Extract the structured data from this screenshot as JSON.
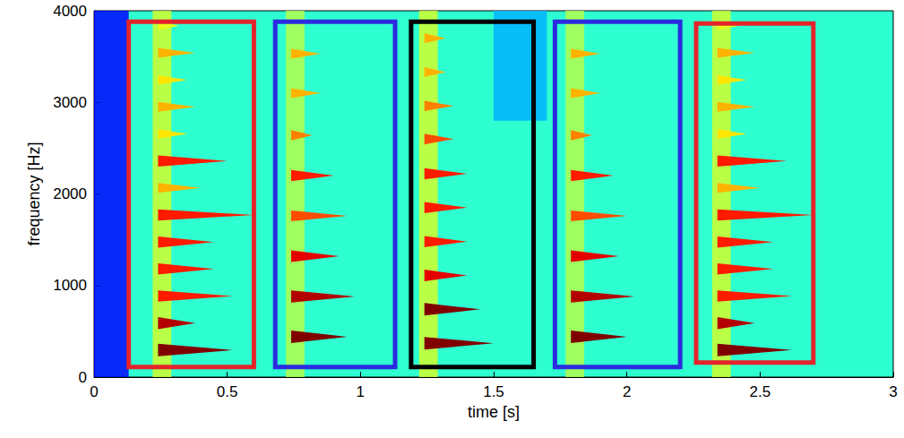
{
  "chart_data": {
    "type": "spectrogram",
    "x_label": "time [s]",
    "y_label": "frequency [Hz]",
    "xlim": [
      0,
      3
    ],
    "xticks": [
      0,
      0.5,
      1,
      1.5,
      2,
      2.5,
      3
    ],
    "ylim": [
      0,
      4000
    ],
    "yticks": [
      0,
      1000,
      2000,
      3000,
      4000
    ],
    "clim": [
      0,
      1
    ],
    "background": 0.42,
    "regions": [
      {
        "t": [
          0,
          0.13
        ],
        "f": [
          0,
          4000
        ],
        "intensity": 0.13
      },
      {
        "t": [
          0.22,
          0.29
        ],
        "f": [
          0,
          4000
        ],
        "intensity": 0.58
      },
      {
        "t": [
          0.72,
          0.79
        ],
        "f": [
          0,
          4000
        ],
        "intensity": 0.55
      },
      {
        "t": [
          1.22,
          1.29
        ],
        "f": [
          0,
          4000
        ],
        "intensity": 0.58
      },
      {
        "t": [
          1.77,
          1.84
        ],
        "f": [
          0,
          4000
        ],
        "intensity": 0.55
      },
      {
        "t": [
          2.32,
          2.39
        ],
        "f": [
          0,
          4000
        ],
        "intensity": 0.58
      },
      {
        "t": [
          1.5,
          1.7
        ],
        "f": [
          2800,
          4000
        ],
        "intensity": 0.3
      }
    ],
    "notes": [
      {
        "onset": 0.24,
        "partials": [
          {
            "f": 295,
            "end": 0.52,
            "intensity": 1
          },
          {
            "f": 590,
            "end": 0.38,
            "intensity": 0.95
          },
          {
            "f": 885,
            "end": 0.52,
            "intensity": 0.85
          },
          {
            "f": 1180,
            "end": 0.45,
            "intensity": 0.85
          },
          {
            "f": 1475,
            "end": 0.45,
            "intensity": 0.85
          },
          {
            "f": 1770,
            "end": 0.6,
            "intensity": 0.85
          },
          {
            "f": 2065,
            "end": 0.4,
            "intensity": 0.7
          },
          {
            "f": 2360,
            "end": 0.5,
            "intensity": 0.85
          },
          {
            "f": 2655,
            "end": 0.35,
            "intensity": 0.65
          },
          {
            "f": 2950,
            "end": 0.38,
            "intensity": 0.7
          },
          {
            "f": 3245,
            "end": 0.35,
            "intensity": 0.65
          },
          {
            "f": 3540,
            "end": 0.38,
            "intensity": 0.7
          },
          {
            "f": 3835,
            "end": 0.32,
            "intensity": 0.6
          }
        ]
      },
      {
        "onset": 0.74,
        "partials": [
          {
            "f": 440,
            "end": 0.95,
            "intensity": 1
          },
          {
            "f": 880,
            "end": 0.98,
            "intensity": 0.95
          },
          {
            "f": 1320,
            "end": 0.92,
            "intensity": 0.9
          },
          {
            "f": 1760,
            "end": 0.95,
            "intensity": 0.8
          },
          {
            "f": 2200,
            "end": 0.9,
            "intensity": 0.85
          },
          {
            "f": 2640,
            "end": 0.82,
            "intensity": 0.75
          },
          {
            "f": 3100,
            "end": 0.85,
            "intensity": 0.7
          },
          {
            "f": 3530,
            "end": 0.85,
            "intensity": 0.7
          }
        ]
      },
      {
        "onset": 1.24,
        "partials": [
          {
            "f": 370,
            "end": 1.5,
            "intensity": 1
          },
          {
            "f": 740,
            "end": 1.45,
            "intensity": 1
          },
          {
            "f": 1110,
            "end": 1.4,
            "intensity": 0.9
          },
          {
            "f": 1480,
            "end": 1.4,
            "intensity": 0.85
          },
          {
            "f": 1850,
            "end": 1.4,
            "intensity": 0.85
          },
          {
            "f": 2220,
            "end": 1.4,
            "intensity": 0.85
          },
          {
            "f": 2600,
            "end": 1.35,
            "intensity": 0.8
          },
          {
            "f": 2960,
            "end": 1.35,
            "intensity": 0.75
          },
          {
            "f": 3330,
            "end": 1.32,
            "intensity": 0.7
          },
          {
            "f": 3700,
            "end": 1.32,
            "intensity": 0.7
          }
        ]
      },
      {
        "onset": 1.79,
        "partials": [
          {
            "f": 440,
            "end": 2.0,
            "intensity": 1
          },
          {
            "f": 880,
            "end": 2.03,
            "intensity": 0.95
          },
          {
            "f": 1320,
            "end": 1.97,
            "intensity": 0.9
          },
          {
            "f": 1760,
            "end": 2.0,
            "intensity": 0.8
          },
          {
            "f": 2200,
            "end": 1.95,
            "intensity": 0.85
          },
          {
            "f": 2640,
            "end": 1.87,
            "intensity": 0.75
          },
          {
            "f": 3100,
            "end": 1.9,
            "intensity": 0.7
          },
          {
            "f": 3530,
            "end": 1.9,
            "intensity": 0.7
          }
        ]
      },
      {
        "onset": 2.34,
        "partials": [
          {
            "f": 295,
            "end": 2.62,
            "intensity": 1
          },
          {
            "f": 590,
            "end": 2.48,
            "intensity": 0.95
          },
          {
            "f": 885,
            "end": 2.62,
            "intensity": 0.85
          },
          {
            "f": 1180,
            "end": 2.55,
            "intensity": 0.85
          },
          {
            "f": 1475,
            "end": 2.55,
            "intensity": 0.85
          },
          {
            "f": 1770,
            "end": 2.7,
            "intensity": 0.85
          },
          {
            "f": 2065,
            "end": 2.5,
            "intensity": 0.7
          },
          {
            "f": 2360,
            "end": 2.6,
            "intensity": 0.85
          },
          {
            "f": 2655,
            "end": 2.45,
            "intensity": 0.65
          },
          {
            "f": 2950,
            "end": 2.48,
            "intensity": 0.7
          },
          {
            "f": 3245,
            "end": 2.45,
            "intensity": 0.65
          },
          {
            "f": 3540,
            "end": 2.48,
            "intensity": 0.7
          },
          {
            "f": 3835,
            "end": 2.42,
            "intensity": 0.6
          }
        ]
      }
    ],
    "boxes": [
      {
        "t": [
          0.13,
          0.6
        ],
        "f": [
          110,
          3880
        ],
        "color": "#e3242b"
      },
      {
        "t": [
          0.68,
          1.13
        ],
        "f": [
          110,
          3880
        ],
        "color": "#2b2be0"
      },
      {
        "t": [
          1.19,
          1.65
        ],
        "f": [
          110,
          3880
        ],
        "color": "#000000"
      },
      {
        "t": [
          1.73,
          2.2
        ],
        "f": [
          110,
          3880
        ],
        "color": "#2b2be0"
      },
      {
        "t": [
          2.26,
          2.7
        ],
        "f": [
          160,
          3860
        ],
        "color": "#e3242b"
      }
    ]
  }
}
